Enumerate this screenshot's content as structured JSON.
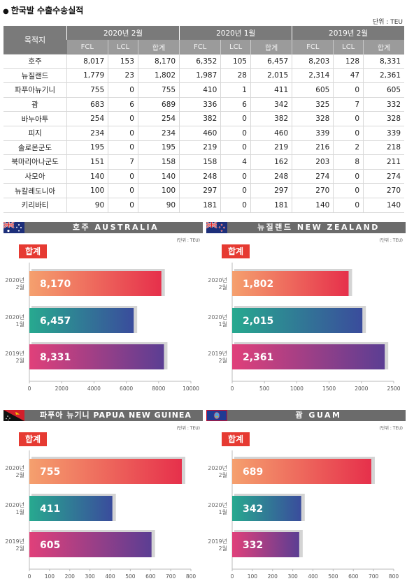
{
  "title": "한국발 수출수송실적",
  "unit": "단위 : TEU",
  "table": {
    "dest_header": "목적지",
    "periods": [
      "2020년 2월",
      "2020년 1월",
      "2019년 2월"
    ],
    "sub_headers": [
      "FCL",
      "LCL",
      "합계"
    ],
    "rows": [
      {
        "dest": "호주",
        "vals": [
          "8,017",
          "153",
          "8,170",
          "6,352",
          "105",
          "6,457",
          "8,203",
          "128",
          "8,331"
        ]
      },
      {
        "dest": "뉴질랜드",
        "vals": [
          "1,779",
          "23",
          "1,802",
          "1,987",
          "28",
          "2,015",
          "2,314",
          "47",
          "2,361"
        ]
      },
      {
        "dest": "파푸아뉴기니",
        "vals": [
          "755",
          "0",
          "755",
          "410",
          "1",
          "411",
          "605",
          "0",
          "605"
        ]
      },
      {
        "dest": "괌",
        "vals": [
          "683",
          "6",
          "689",
          "336",
          "6",
          "342",
          "325",
          "7",
          "332"
        ]
      },
      {
        "dest": "바누아투",
        "vals": [
          "254",
          "0",
          "254",
          "382",
          "0",
          "382",
          "328",
          "0",
          "328"
        ]
      },
      {
        "dest": "피지",
        "vals": [
          "234",
          "0",
          "234",
          "460",
          "0",
          "460",
          "339",
          "0",
          "339"
        ]
      },
      {
        "dest": "솔로몬군도",
        "vals": [
          "195",
          "0",
          "195",
          "219",
          "0",
          "219",
          "216",
          "2",
          "218"
        ]
      },
      {
        "dest": "북마리아나군도",
        "vals": [
          "151",
          "7",
          "158",
          "158",
          "4",
          "162",
          "203",
          "8",
          "211"
        ]
      },
      {
        "dest": "사모아",
        "vals": [
          "140",
          "0",
          "140",
          "248",
          "0",
          "248",
          "274",
          "0",
          "274"
        ]
      },
      {
        "dest": "뉴칼레도니아",
        "vals": [
          "100",
          "0",
          "100",
          "297",
          "0",
          "297",
          "270",
          "0",
          "270"
        ]
      },
      {
        "dest": "키리바티",
        "vals": [
          "90",
          "0",
          "90",
          "181",
          "0",
          "181",
          "140",
          "0",
          "140"
        ]
      }
    ]
  },
  "colors": {
    "bar1": [
      "#f5a06e",
      "#e6304b"
    ],
    "bar2": [
      "#27a98f",
      "#3a4c9c"
    ],
    "bar3": [
      "#e0407a",
      "#5b3e93"
    ],
    "badge": "#e63a32",
    "header": "#6b6b6b"
  },
  "chart_data": [
    {
      "type": "bar",
      "orientation": "horizontal",
      "title": "호주 AUSTRALIA",
      "flag": "australia-flag",
      "unit": "(단위 : TEU)",
      "badge": "합계",
      "categories": [
        "2020년 2월",
        "2020년 1월",
        "2019년 2월"
      ],
      "values": [
        8170,
        6457,
        8331
      ],
      "value_labels": [
        "8,170",
        "6,457",
        "8,331"
      ],
      "xlim": [
        0,
        10000
      ],
      "ticks": [
        0,
        2000,
        4000,
        6000,
        8000,
        10000
      ]
    },
    {
      "type": "bar",
      "orientation": "horizontal",
      "title": "뉴질랜드 NEW ZEALAND",
      "flag": "new-zealand-flag",
      "unit": "(단위 : TEU)",
      "badge": "합계",
      "categories": [
        "2020년 2월",
        "2020년 1월",
        "2019년 2월"
      ],
      "values": [
        1802,
        2015,
        2361
      ],
      "value_labels": [
        "1,802",
        "2,015",
        "2,361"
      ],
      "xlim": [
        0,
        2500
      ],
      "ticks": [
        0,
        500,
        1000,
        1500,
        2000,
        2500
      ]
    },
    {
      "type": "bar",
      "orientation": "horizontal",
      "title": "파푸아 뉴기니 PAPUA NEW GUINEA",
      "flag": "papua-new-guinea-flag",
      "unit": "(단위 : TEU)",
      "badge": "합계",
      "categories": [
        "2020년 2월",
        "2020년 1월",
        "2019년 2월"
      ],
      "values": [
        755,
        411,
        605
      ],
      "value_labels": [
        "755",
        "411",
        "605"
      ],
      "xlim": [
        0,
        800
      ],
      "ticks": [
        0,
        100,
        200,
        300,
        400,
        500,
        600,
        700,
        800
      ]
    },
    {
      "type": "bar",
      "orientation": "horizontal",
      "title": "괌 GUAM",
      "flag": "guam-flag",
      "unit": "(단위 : TEU)",
      "badge": "합계",
      "categories": [
        "2020년 2월",
        "2020년 1월",
        "2019년 2월"
      ],
      "values": [
        689,
        342,
        332
      ],
      "value_labels": [
        "689",
        "342",
        "332"
      ],
      "xlim": [
        0,
        800
      ],
      "ticks": [
        0,
        100,
        200,
        300,
        400,
        500,
        600,
        700,
        800
      ]
    }
  ]
}
